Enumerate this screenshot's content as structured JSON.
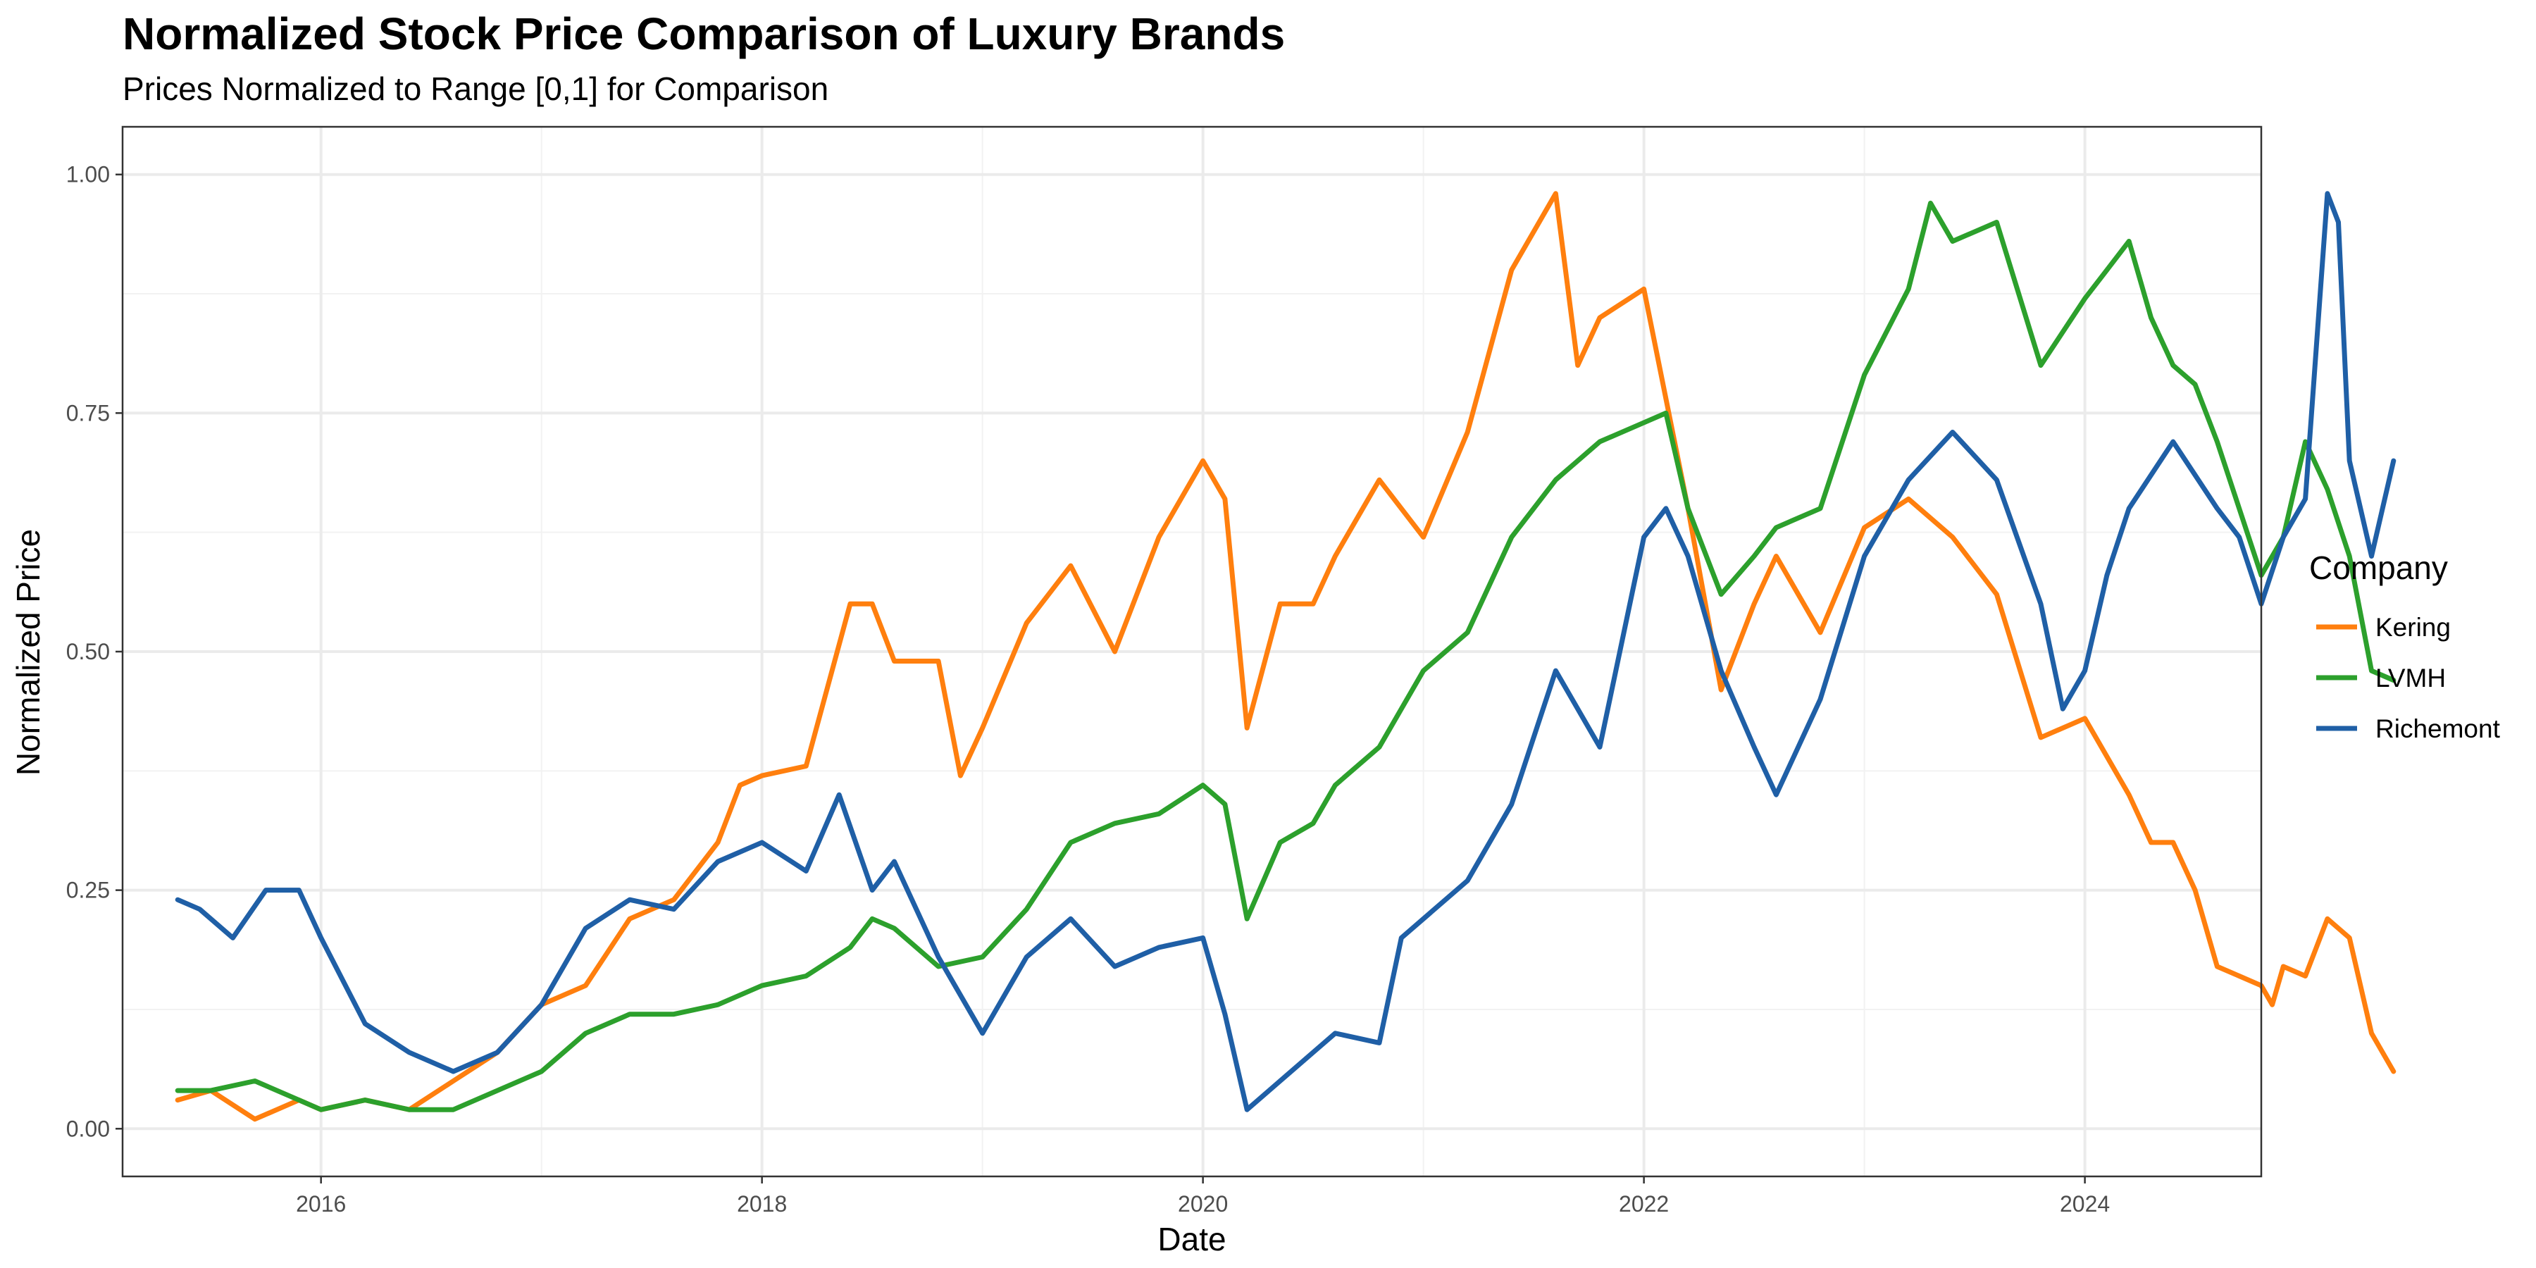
{
  "chart_data": {
    "type": "line",
    "title": "Normalized Stock Price Comparison of Luxury Brands",
    "subtitle": "Prices Normalized to Range [0,1] for Comparison",
    "xlabel": "Date",
    "ylabel": "Normalized Price",
    "xlim": [
      2015.1,
      2024.8
    ],
    "ylim": [
      -0.05,
      1.05
    ],
    "xticks": [
      2016,
      2018,
      2020,
      2022,
      2024
    ],
    "xtick_labels": [
      "2016",
      "2018",
      "2020",
      "2022",
      "2024"
    ],
    "yticks": [
      0,
      0.25,
      0.5,
      0.75,
      1.0
    ],
    "ytick_labels": [
      "0.00",
      "0.25",
      "0.50",
      "0.75",
      "1.00"
    ],
    "grid": true,
    "legend": {
      "title": "Company",
      "position": "right"
    },
    "series": [
      {
        "name": "Kering",
        "color": "#FF7F0E",
        "x": [
          2015.35,
          2015.5,
          2015.7,
          2015.9,
          2016.0,
          2016.2,
          2016.4,
          2016.6,
          2016.8,
          2017.0,
          2017.2,
          2017.4,
          2017.6,
          2017.8,
          2017.9,
          2018.0,
          2018.2,
          2018.4,
          2018.5,
          2018.6,
          2018.8,
          2018.9,
          2019.0,
          2019.2,
          2019.4,
          2019.6,
          2019.8,
          2020.0,
          2020.1,
          2020.2,
          2020.35,
          2020.5,
          2020.6,
          2020.8,
          2021.0,
          2021.2,
          2021.4,
          2021.6,
          2021.7,
          2021.8,
          2022.0,
          2022.2,
          2022.35,
          2022.5,
          2022.6,
          2022.8,
          2023.0,
          2023.2,
          2023.4,
          2023.6,
          2023.8,
          2024.0,
          2024.2,
          2024.3,
          2024.4,
          2024.5,
          2024.6,
          2024.7,
          2024.8,
          2024.85,
          2024.9,
          2025.0,
          2025.1,
          2025.2,
          2025.3,
          2025.4
        ],
        "y": [
          0.03,
          0.04,
          0.01,
          0.03,
          0.02,
          0.03,
          0.02,
          0.05,
          0.08,
          0.13,
          0.15,
          0.22,
          0.24,
          0.3,
          0.36,
          0.37,
          0.38,
          0.55,
          0.55,
          0.49,
          0.49,
          0.37,
          0.42,
          0.53,
          0.59,
          0.5,
          0.62,
          0.7,
          0.66,
          0.42,
          0.55,
          0.55,
          0.6,
          0.68,
          0.62,
          0.73,
          0.9,
          0.98,
          0.8,
          0.85,
          0.88,
          0.65,
          0.46,
          0.55,
          0.6,
          0.52,
          0.63,
          0.66,
          0.62,
          0.56,
          0.41,
          0.43,
          0.35,
          0.3,
          0.3,
          0.25,
          0.17,
          0.16,
          0.15,
          0.13,
          0.17,
          0.16,
          0.22,
          0.2,
          0.1,
          0.06
        ]
      },
      {
        "name": "LVMH",
        "color": "#2CA02C",
        "x": [
          2015.35,
          2015.5,
          2015.7,
          2015.9,
          2016.0,
          2016.2,
          2016.4,
          2016.6,
          2016.8,
          2017.0,
          2017.2,
          2017.4,
          2017.6,
          2017.8,
          2018.0,
          2018.2,
          2018.4,
          2018.5,
          2018.6,
          2018.8,
          2019.0,
          2019.2,
          2019.4,
          2019.6,
          2019.8,
          2020.0,
          2020.1,
          2020.2,
          2020.35,
          2020.5,
          2020.6,
          2020.8,
          2021.0,
          2021.2,
          2021.4,
          2021.6,
          2021.7,
          2021.8,
          2022.0,
          2022.1,
          2022.2,
          2022.35,
          2022.5,
          2022.6,
          2022.8,
          2023.0,
          2023.2,
          2023.3,
          2023.4,
          2023.6,
          2023.8,
          2024.0,
          2024.1,
          2024.2,
          2024.3,
          2024.4,
          2024.5,
          2024.6,
          2024.7,
          2024.8,
          2024.9,
          2025.0,
          2025.1,
          2025.2,
          2025.3,
          2025.4
        ],
        "y": [
          0.04,
          0.04,
          0.05,
          0.03,
          0.02,
          0.03,
          0.02,
          0.02,
          0.04,
          0.06,
          0.1,
          0.12,
          0.12,
          0.13,
          0.15,
          0.16,
          0.19,
          0.22,
          0.21,
          0.17,
          0.18,
          0.23,
          0.3,
          0.32,
          0.33,
          0.36,
          0.34,
          0.22,
          0.3,
          0.32,
          0.36,
          0.4,
          0.48,
          0.52,
          0.62,
          0.68,
          0.7,
          0.72,
          0.74,
          0.75,
          0.65,
          0.56,
          0.6,
          0.63,
          0.65,
          0.79,
          0.88,
          0.97,
          0.93,
          0.95,
          0.8,
          0.87,
          0.9,
          0.93,
          0.85,
          0.8,
          0.78,
          0.72,
          0.65,
          0.58,
          0.62,
          0.72,
          0.67,
          0.6,
          0.48,
          0.47
        ]
      },
      {
        "name": "Richemont",
        "color": "#1F5FA6",
        "x": [
          2015.35,
          2015.45,
          2015.6,
          2015.75,
          2015.9,
          2016.0,
          2016.2,
          2016.4,
          2016.6,
          2016.8,
          2017.0,
          2017.2,
          2017.4,
          2017.6,
          2017.8,
          2018.0,
          2018.2,
          2018.35,
          2018.5,
          2018.6,
          2018.8,
          2019.0,
          2019.2,
          2019.4,
          2019.6,
          2019.8,
          2020.0,
          2020.1,
          2020.2,
          2020.35,
          2020.5,
          2020.6,
          2020.8,
          2020.9,
          2021.0,
          2021.2,
          2021.4,
          2021.6,
          2021.8,
          2022.0,
          2022.1,
          2022.2,
          2022.35,
          2022.5,
          2022.6,
          2022.8,
          2023.0,
          2023.2,
          2023.4,
          2023.6,
          2023.8,
          2023.9,
          2024.0,
          2024.1,
          2024.2,
          2024.4,
          2024.6,
          2024.7,
          2024.8,
          2024.9,
          2025.0,
          2025.1,
          2025.15,
          2025.2,
          2025.3,
          2025.4
        ],
        "y": [
          0.24,
          0.23,
          0.2,
          0.25,
          0.25,
          0.2,
          0.11,
          0.08,
          0.06,
          0.08,
          0.13,
          0.21,
          0.24,
          0.23,
          0.28,
          0.3,
          0.27,
          0.35,
          0.25,
          0.28,
          0.18,
          0.1,
          0.18,
          0.22,
          0.17,
          0.19,
          0.2,
          0.12,
          0.02,
          0.05,
          0.08,
          0.1,
          0.09,
          0.2,
          0.22,
          0.26,
          0.34,
          0.48,
          0.4,
          0.62,
          0.65,
          0.6,
          0.48,
          0.4,
          0.35,
          0.45,
          0.6,
          0.68,
          0.73,
          0.68,
          0.55,
          0.44,
          0.48,
          0.58,
          0.65,
          0.72,
          0.65,
          0.62,
          0.55,
          0.62,
          0.66,
          0.98,
          0.95,
          0.7,
          0.6,
          0.7
        ]
      }
    ]
  }
}
